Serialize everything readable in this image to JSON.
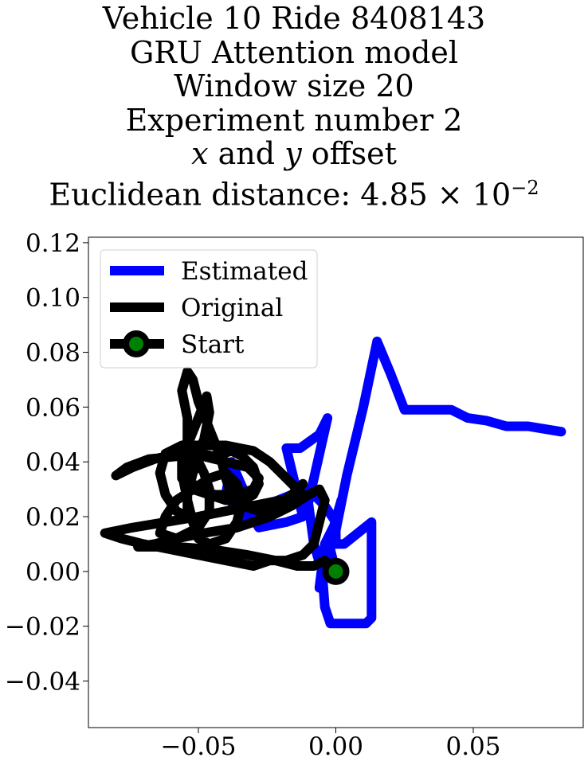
{
  "chart_data": {
    "type": "line",
    "title_lines": [
      "Vehicle 10 Ride 8408143",
      "GRU Attention model",
      "Window size 20",
      "Experiment number 2"
    ],
    "title_offset_line": {
      "x": "x",
      "and": " and ",
      "y": "y",
      "rest": " offset"
    },
    "title_distance": {
      "prefix": "Euclidean distance: 4.85 × 10",
      "exponent": "−2"
    },
    "xlim": [
      -0.09,
      0.09
    ],
    "ylim": [
      -0.057,
      0.122
    ],
    "xticks": [
      -0.05,
      0.0,
      0.05
    ],
    "xtick_labels": [
      "−0.05",
      "0.00",
      "0.05"
    ],
    "yticks": [
      -0.04,
      -0.02,
      0.0,
      0.02,
      0.04,
      0.06,
      0.08,
      0.1,
      0.12
    ],
    "ytick_labels": [
      "−0.04",
      "−0.02",
      "0.00",
      "0.02",
      "0.04",
      "0.06",
      "0.08",
      "0.10",
      "0.12"
    ],
    "legend": {
      "location": "top-left",
      "entries": [
        "Estimated",
        "Original",
        "Start"
      ]
    },
    "grid": false,
    "series": [
      {
        "name": "Estimated",
        "color": "#0000ff",
        "points": [
          [
            0.0,
            0.0
          ],
          [
            -0.002,
            0.008
          ],
          [
            0.0,
            0.018
          ],
          [
            0.002,
            0.026
          ],
          [
            -0.002,
            0.012
          ],
          [
            -0.006,
            -0.006
          ],
          [
            -0.004,
            0.01
          ],
          [
            0.0,
            0.018
          ],
          [
            -0.004,
            0.024
          ],
          [
            -0.01,
            0.03
          ],
          [
            -0.016,
            0.028
          ],
          [
            -0.026,
            0.024
          ],
          [
            -0.034,
            0.02
          ],
          [
            -0.04,
            0.028
          ],
          [
            -0.038,
            0.04
          ],
          [
            -0.032,
            0.026
          ],
          [
            -0.036,
            0.03
          ],
          [
            -0.028,
            0.016
          ],
          [
            -0.018,
            0.018
          ],
          [
            -0.012,
            0.02
          ],
          [
            -0.018,
            0.045
          ],
          [
            -0.013,
            0.045
          ],
          [
            -0.006,
            0.05
          ],
          [
            -0.003,
            0.056
          ],
          [
            -0.01,
            0.025
          ],
          [
            -0.008,
            0.01
          ],
          [
            -0.005,
            0.0
          ],
          [
            -0.004,
            -0.013
          ],
          [
            -0.002,
            -0.019
          ],
          [
            0.005,
            -0.019
          ],
          [
            0.011,
            -0.019
          ],
          [
            0.013,
            -0.017
          ],
          [
            0.013,
            0.004
          ],
          [
            0.013,
            0.018
          ],
          [
            0.008,
            0.014
          ],
          [
            0.003,
            0.01
          ],
          [
            0.0,
            0.01
          ],
          [
            0.0,
            0.015
          ],
          [
            0.004,
            0.035
          ],
          [
            0.01,
            0.06
          ],
          [
            0.015,
            0.084
          ],
          [
            0.02,
            0.072
          ],
          [
            0.025,
            0.059
          ],
          [
            0.03,
            0.059
          ],
          [
            0.042,
            0.059
          ],
          [
            0.048,
            0.056
          ],
          [
            0.055,
            0.055
          ],
          [
            0.062,
            0.053
          ],
          [
            0.07,
            0.053
          ],
          [
            0.082,
            0.051
          ]
        ]
      },
      {
        "name": "Original",
        "color": "#000000",
        "points": [
          [
            0.0,
            0.0
          ],
          [
            -0.004,
            0.004
          ],
          [
            -0.008,
            0.002
          ],
          [
            -0.014,
            0.002
          ],
          [
            -0.022,
            0.004
          ],
          [
            -0.032,
            0.006
          ],
          [
            -0.045,
            0.008
          ],
          [
            -0.058,
            0.009
          ],
          [
            -0.068,
            0.009
          ],
          [
            -0.072,
            0.009
          ],
          [
            -0.066,
            0.01
          ],
          [
            -0.058,
            0.012
          ],
          [
            -0.048,
            0.014
          ],
          [
            -0.036,
            0.016
          ],
          [
            -0.024,
            0.02
          ],
          [
            -0.016,
            0.024
          ],
          [
            -0.01,
            0.028
          ],
          [
            -0.006,
            0.03
          ],
          [
            -0.004,
            0.026
          ],
          [
            -0.006,
            0.018
          ],
          [
            -0.008,
            0.01
          ],
          [
            -0.012,
            0.006
          ],
          [
            -0.018,
            0.004
          ],
          [
            -0.024,
            0.004
          ],
          [
            -0.03,
            0.002
          ],
          [
            -0.04,
            0.004
          ],
          [
            -0.05,
            0.006
          ],
          [
            -0.06,
            0.008
          ],
          [
            -0.07,
            0.01
          ],
          [
            -0.078,
            0.012
          ],
          [
            -0.084,
            0.014
          ],
          [
            -0.074,
            0.016
          ],
          [
            -0.062,
            0.018
          ],
          [
            -0.05,
            0.02
          ],
          [
            -0.04,
            0.022
          ],
          [
            -0.03,
            0.024
          ],
          [
            -0.02,
            0.026
          ],
          [
            -0.012,
            0.028
          ],
          [
            -0.016,
            0.032
          ],
          [
            -0.02,
            0.036
          ],
          [
            -0.024,
            0.04
          ],
          [
            -0.03,
            0.044
          ],
          [
            -0.04,
            0.046
          ],
          [
            -0.05,
            0.046
          ],
          [
            -0.056,
            0.046
          ],
          [
            -0.062,
            0.043
          ],
          [
            -0.064,
            0.036
          ],
          [
            -0.062,
            0.028
          ],
          [
            -0.058,
            0.022
          ],
          [
            -0.054,
            0.02
          ],
          [
            -0.054,
            0.028
          ],
          [
            -0.052,
            0.036
          ],
          [
            -0.05,
            0.04
          ],
          [
            -0.048,
            0.036
          ],
          [
            -0.046,
            0.03
          ],
          [
            -0.046,
            0.022
          ],
          [
            -0.05,
            0.016
          ],
          [
            -0.058,
            0.012
          ],
          [
            -0.064,
            0.014
          ],
          [
            -0.062,
            0.02
          ],
          [
            -0.058,
            0.026
          ],
          [
            -0.052,
            0.03
          ],
          [
            -0.046,
            0.034
          ],
          [
            -0.04,
            0.036
          ],
          [
            -0.036,
            0.032
          ],
          [
            -0.034,
            0.026
          ],
          [
            -0.036,
            0.018
          ],
          [
            -0.04,
            0.012
          ],
          [
            -0.046,
            0.01
          ],
          [
            -0.05,
            0.012
          ],
          [
            -0.052,
            0.018
          ],
          [
            -0.054,
            0.026
          ],
          [
            -0.056,
            0.036
          ],
          [
            -0.054,
            0.046
          ],
          [
            -0.05,
            0.056
          ],
          [
            -0.047,
            0.064
          ],
          [
            -0.046,
            0.058
          ],
          [
            -0.048,
            0.048
          ],
          [
            -0.052,
            0.04
          ],
          [
            -0.054,
            0.034
          ],
          [
            -0.05,
            0.03
          ],
          [
            -0.044,
            0.028
          ],
          [
            -0.036,
            0.028
          ],
          [
            -0.03,
            0.03
          ],
          [
            -0.028,
            0.034
          ],
          [
            -0.032,
            0.038
          ],
          [
            -0.04,
            0.04
          ],
          [
            -0.048,
            0.042
          ],
          [
            -0.058,
            0.042
          ],
          [
            -0.068,
            0.041
          ],
          [
            -0.076,
            0.038
          ],
          [
            -0.08,
            0.035
          ],
          [
            -0.074,
            0.038
          ],
          [
            -0.066,
            0.041
          ],
          [
            -0.058,
            0.043
          ],
          [
            -0.05,
            0.043
          ],
          [
            -0.044,
            0.042
          ],
          [
            -0.038,
            0.044
          ],
          [
            -0.034,
            0.042
          ],
          [
            -0.03,
            0.038
          ],
          [
            -0.028,
            0.032
          ],
          [
            -0.03,
            0.028
          ],
          [
            -0.034,
            0.026
          ],
          [
            -0.04,
            0.026
          ],
          [
            -0.046,
            0.028
          ],
          [
            -0.052,
            0.03
          ],
          [
            -0.056,
            0.034
          ],
          [
            -0.056,
            0.04
          ],
          [
            -0.054,
            0.048
          ],
          [
            -0.054,
            0.056
          ],
          [
            -0.056,
            0.066
          ],
          [
            -0.054,
            0.073
          ],
          [
            -0.052,
            0.07
          ],
          [
            -0.05,
            0.062
          ],
          [
            -0.046,
            0.052
          ],
          [
            -0.042,
            0.042
          ],
          [
            -0.04,
            0.034
          ],
          [
            -0.038,
            0.028
          ],
          [
            -0.034,
            0.024
          ],
          [
            -0.028,
            0.022
          ],
          [
            -0.022,
            0.024
          ],
          [
            -0.016,
            0.028
          ],
          [
            -0.012,
            0.032
          ]
        ]
      }
    ],
    "start": {
      "name": "Start",
      "point": [
        0.0,
        0.0
      ],
      "marker_color": "#008000",
      "edge_color": "#000000"
    }
  }
}
